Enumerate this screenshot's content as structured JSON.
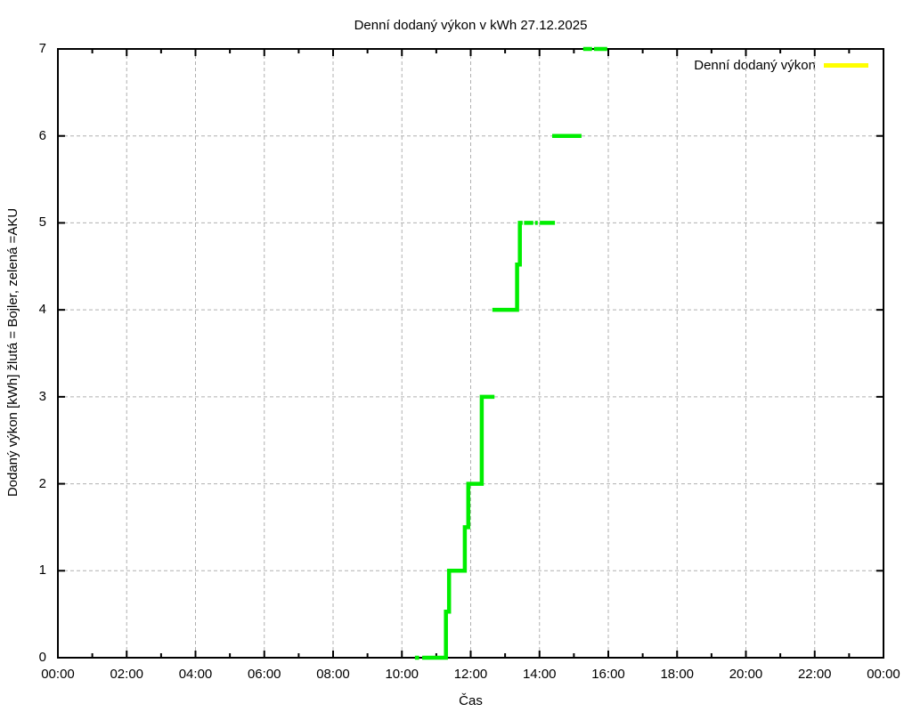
{
  "chart_data": {
    "type": "line",
    "title": "Denní dodaný výkon v kWh 27.12.2025",
    "xlabel": "Čas",
    "ylabel": "Dodaný výkon [kWh]  žlutá = Bojler, zelená =AKU",
    "xlim_hours": [
      0,
      24
    ],
    "ylim": [
      0,
      7
    ],
    "grid": true,
    "x_major_ticks": [
      {
        "hour": 0,
        "label": "00:00"
      },
      {
        "hour": 2,
        "label": "02:00"
      },
      {
        "hour": 4,
        "label": "04:00"
      },
      {
        "hour": 6,
        "label": "06:00"
      },
      {
        "hour": 8,
        "label": "08:00"
      },
      {
        "hour": 10,
        "label": "10:00"
      },
      {
        "hour": 12,
        "label": "12:00"
      },
      {
        "hour": 14,
        "label": "14:00"
      },
      {
        "hour": 16,
        "label": "16:00"
      },
      {
        "hour": 18,
        "label": "18:00"
      },
      {
        "hour": 20,
        "label": "20:00"
      },
      {
        "hour": 22,
        "label": "22:00"
      },
      {
        "hour": 24,
        "label": "00:00"
      }
    ],
    "x_minor_tick_hours": [
      1,
      3,
      5,
      7,
      9,
      11,
      13,
      15,
      17,
      19,
      21,
      23
    ],
    "y_ticks": [
      {
        "value": 0,
        "label": "0"
      },
      {
        "value": 1,
        "label": "1"
      },
      {
        "value": 2,
        "label": "2"
      },
      {
        "value": 3,
        "label": "3"
      },
      {
        "value": 4,
        "label": "4"
      },
      {
        "value": 5,
        "label": "5"
      },
      {
        "value": 6,
        "label": "6"
      },
      {
        "value": 7,
        "label": "7"
      }
    ],
    "legend": {
      "position": "top-right",
      "entries": [
        {
          "label": "Denní dodaný výkon",
          "color": "#ffff00"
        }
      ]
    },
    "series": [
      {
        "name": "Dodaný výkon AKU (zelená)",
        "color": "#00ee00",
        "line_width": 4.5,
        "unit_x": "decimal_hours",
        "unit_y": "kWh",
        "segments": [
          [
            [
              10.38,
              0
            ],
            [
              10.5,
              0
            ]
          ],
          [
            [
              10.59,
              0
            ],
            [
              11.28,
              0
            ],
            [
              11.28,
              0.53
            ],
            [
              11.37,
              0.53
            ],
            [
              11.37,
              1
            ],
            [
              11.83,
              1
            ],
            [
              11.83,
              1.5
            ],
            [
              11.93,
              1.5
            ],
            [
              11.93,
              2
            ],
            [
              12.32,
              2
            ],
            [
              12.32,
              3
            ],
            [
              12.69,
              3
            ]
          ],
          [
            [
              12.63,
              4
            ],
            [
              13.35,
              4
            ],
            [
              13.35,
              4.52
            ],
            [
              13.43,
              4.52
            ],
            [
              13.43,
              5
            ],
            [
              13.51,
              5
            ]
          ],
          [
            [
              13.55,
              5
            ],
            [
              13.82,
              5
            ]
          ],
          [
            [
              13.87,
              5
            ],
            [
              13.95,
              5
            ]
          ],
          [
            [
              14.01,
              5
            ],
            [
              14.45,
              5
            ]
          ],
          [
            [
              14.37,
              6
            ],
            [
              15.22,
              6
            ]
          ],
          [
            [
              15.27,
              7
            ],
            [
              15.53,
              7
            ]
          ],
          [
            [
              15.58,
              7
            ],
            [
              15.97,
              7
            ]
          ]
        ]
      }
    ]
  }
}
